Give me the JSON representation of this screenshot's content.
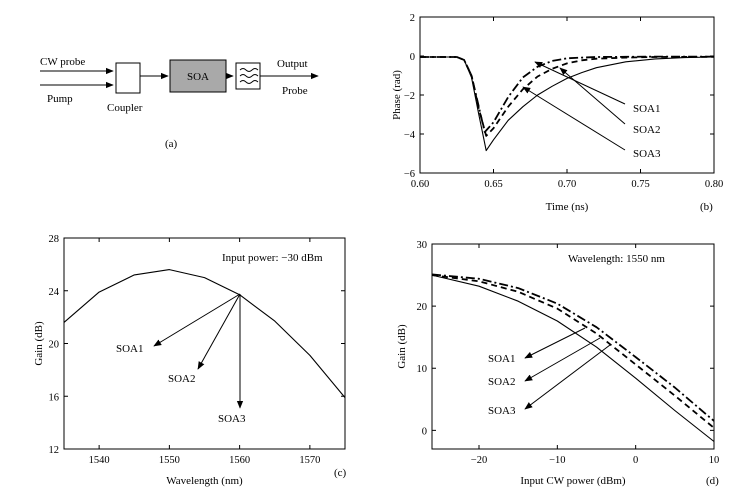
{
  "diagram": {
    "labels": {
      "cw_probe": "CW probe",
      "pump": "Pump",
      "coupler": "Coupler",
      "soa": "SOA",
      "output": "Output",
      "probe": "Probe"
    },
    "panel_label": "(a)"
  },
  "chart_data": [
    {
      "id": "b",
      "type": "line",
      "panel_label": "(b)",
      "xlabel": "Time (ns)",
      "ylabel": "Phase (rad)",
      "xlim": [
        0.6,
        0.8
      ],
      "ylim": [
        -6,
        2
      ],
      "xticks": [
        0.6,
        0.65,
        0.7,
        0.75,
        0.8
      ],
      "xtick_labels": [
        "0.60",
        "0.65",
        "0.70",
        "0.75",
        "0.80"
      ],
      "yticks": [
        -6,
        -4,
        -2,
        0,
        2
      ],
      "ytick_labels": [
        "−6",
        "−4",
        "−2",
        "0",
        "2"
      ],
      "annotations": [
        "SOA1",
        "SOA2",
        "SOA3"
      ],
      "series": [
        {
          "name": "SOA1",
          "style": "dashdot",
          "x": [
            0.6,
            0.625,
            0.63,
            0.635,
            0.64,
            0.644,
            0.65,
            0.66,
            0.67,
            0.68,
            0.69,
            0.7,
            0.71,
            0.72,
            0.74,
            0.76,
            0.8
          ],
          "y": [
            -0.05,
            -0.05,
            -0.2,
            -1.0,
            -2.6,
            -3.9,
            -3.4,
            -2.1,
            -1.1,
            -0.55,
            -0.25,
            -0.12,
            -0.08,
            -0.05,
            -0.04,
            -0.03,
            -0.03
          ]
        },
        {
          "name": "SOA2",
          "style": "dashed",
          "x": [
            0.6,
            0.625,
            0.63,
            0.635,
            0.64,
            0.645,
            0.65,
            0.66,
            0.67,
            0.68,
            0.69,
            0.7,
            0.71,
            0.72,
            0.74,
            0.76,
            0.8
          ],
          "y": [
            -0.05,
            -0.05,
            -0.2,
            -1.0,
            -2.7,
            -4.1,
            -3.7,
            -2.6,
            -1.7,
            -1.05,
            -0.65,
            -0.38,
            -0.22,
            -0.14,
            -0.08,
            -0.05,
            -0.04
          ]
        },
        {
          "name": "SOA3",
          "style": "solid",
          "x": [
            0.6,
            0.625,
            0.63,
            0.635,
            0.64,
            0.645,
            0.65,
            0.66,
            0.67,
            0.68,
            0.69,
            0.7,
            0.71,
            0.72,
            0.74,
            0.76,
            0.78,
            0.8
          ],
          "y": [
            -0.05,
            -0.05,
            -0.2,
            -1.1,
            -3.0,
            -4.85,
            -4.3,
            -3.3,
            -2.6,
            -2.0,
            -1.55,
            -1.15,
            -0.85,
            -0.6,
            -0.3,
            -0.15,
            -0.08,
            -0.05
          ]
        }
      ]
    },
    {
      "id": "c",
      "type": "line",
      "panel_label": "(c)",
      "xlabel": "Wavelength (nm)",
      "ylabel": "Gain (dB)",
      "xlim": [
        1535,
        1575
      ],
      "ylim": [
        12,
        28
      ],
      "xticks": [
        1540,
        1550,
        1560,
        1570
      ],
      "xtick_labels": [
        "1540",
        "1550",
        "1560",
        "1570"
      ],
      "yticks": [
        12,
        16,
        20,
        24,
        28
      ],
      "ytick_labels": [
        "12",
        "16",
        "20",
        "24",
        "28"
      ],
      "annotation_text": "Input power: −30 dBm",
      "annotations": [
        "SOA1",
        "SOA2",
        "SOA3"
      ],
      "series": [
        {
          "name": "SOA",
          "style": "solid",
          "x": [
            1535,
            1540,
            1545,
            1550,
            1555,
            1560,
            1565,
            1570,
            1575
          ],
          "y": [
            21.6,
            23.9,
            25.2,
            25.6,
            25.0,
            23.7,
            21.7,
            19.1,
            15.9
          ]
        }
      ]
    },
    {
      "id": "d",
      "type": "line",
      "panel_label": "(d)",
      "xlabel": "Input CW power (dBm)",
      "ylabel": "Gain (dB)",
      "xlim": [
        -26,
        10
      ],
      "ylim": [
        -3,
        30
      ],
      "xticks": [
        -20,
        -10,
        0,
        10
      ],
      "xtick_labels": [
        "−20",
        "−10",
        "0",
        "10"
      ],
      "yticks": [
        0,
        10,
        20,
        30
      ],
      "ytick_labels": [
        "0",
        "10",
        "20",
        "30"
      ],
      "annotation_text": "Wavelength: 1550 nm",
      "annotations": [
        "SOA1",
        "SOA2",
        "SOA3"
      ],
      "series": [
        {
          "name": "SOA1",
          "style": "dashdot",
          "x": [
            -26,
            -20,
            -15,
            -10,
            -5,
            0,
            5,
            10
          ],
          "y": [
            25.1,
            24.4,
            22.9,
            20.4,
            16.6,
            11.8,
            6.9,
            1.5
          ]
        },
        {
          "name": "SOA2",
          "style": "dashed",
          "x": [
            -26,
            -20,
            -15,
            -10,
            -5,
            0,
            5,
            10
          ],
          "y": [
            25.0,
            24.0,
            22.3,
            19.6,
            15.6,
            10.6,
            5.6,
            0.4
          ]
        },
        {
          "name": "SOA3",
          "style": "solid",
          "x": [
            -26,
            -20,
            -15,
            -10,
            -5,
            0,
            5,
            10
          ],
          "y": [
            25.0,
            23.2,
            20.8,
            17.6,
            13.4,
            8.4,
            3.2,
            -1.8
          ]
        }
      ]
    }
  ]
}
